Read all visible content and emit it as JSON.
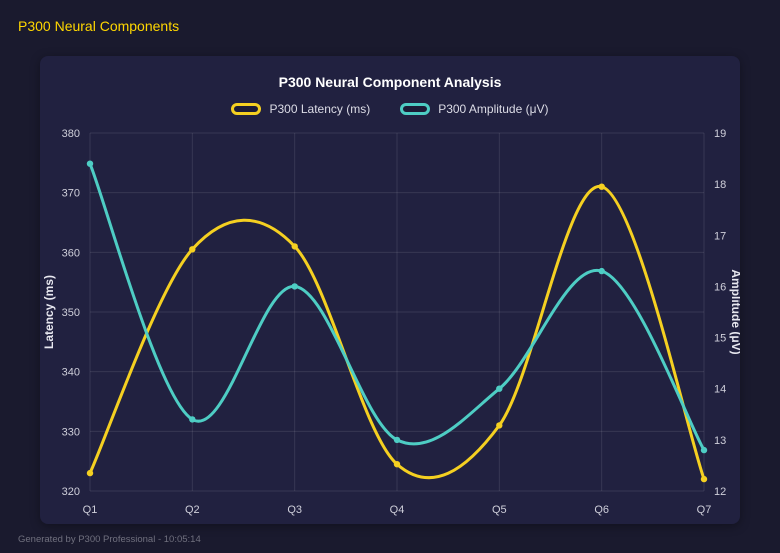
{
  "page": {
    "title": "P300 Neural Components",
    "footer": "Generated by P300 Professional - 10:05:14"
  },
  "colors": {
    "accent": "#ffd700",
    "background": "#1a1a2e",
    "panel": "#212140",
    "latency_line": "#f5d021",
    "amplitude_line": "#4ecdc4",
    "tick_text": "#cfcfda",
    "grid": "rgba(255,255,255,0.10)"
  },
  "chart_data": {
    "type": "line",
    "title": "P300 Neural Component Analysis",
    "categories": [
      "Q1",
      "Q2",
      "Q3",
      "Q4",
      "Q5",
      "Q6",
      "Q7"
    ],
    "series": [
      {
        "name": "P300 Latency (ms)",
        "axis": "left",
        "color": "#f5d021",
        "values": [
          323,
          360.5,
          361,
          324.5,
          331,
          371,
          322
        ]
      },
      {
        "name": "P300 Amplitude (μV)",
        "axis": "right",
        "color": "#4ecdc4",
        "values": [
          18.4,
          13.4,
          16.0,
          13.0,
          14.0,
          16.3,
          12.8
        ]
      }
    ],
    "left_axis": {
      "label": "Latency (ms)",
      "min": 320,
      "max": 380,
      "step": 10
    },
    "right_axis": {
      "label": "Amplitude (μV)",
      "min": 12,
      "max": 19,
      "step": 1
    },
    "grid": true,
    "smooth": true,
    "legend_position": "top"
  }
}
